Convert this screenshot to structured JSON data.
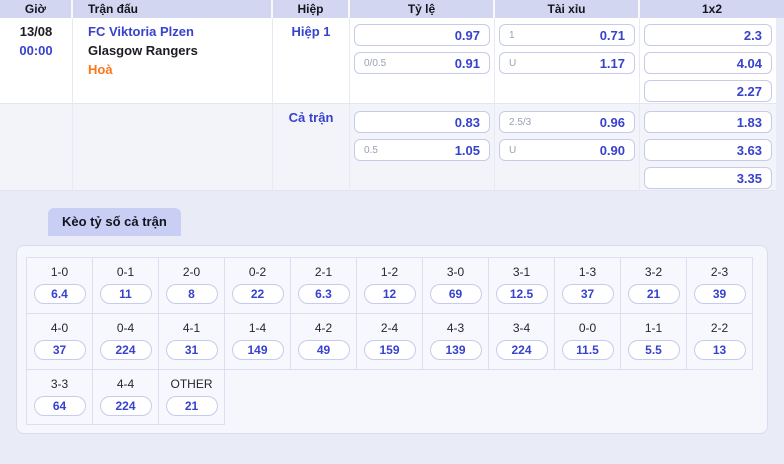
{
  "colors": {
    "accent_blue": "#3742cd",
    "orange": "#ff7519",
    "header_bg": "#d3d6f0",
    "tab_bg": "#c9cef4",
    "fulltime_row_bg": "#f3f4fa",
    "page_bg": "#e9ebf7"
  },
  "odds_table": {
    "headers": [
      "Giờ",
      "Trận đấu",
      "Hiệp",
      "Tỷ lệ",
      "Tài xỉu",
      "1x2"
    ],
    "match": {
      "date": "13/08",
      "time": "00:00",
      "home": "FC Viktoria Plzen",
      "away": "Glasgow Rangers",
      "draw": "Hoà"
    },
    "sections": [
      {
        "period": "Hiệp 1",
        "handicap": [
          {
            "line": "",
            "odds": "0.97"
          },
          {
            "line": "0/0.5",
            "odds": "0.91"
          }
        ],
        "over_under": [
          {
            "line": "1",
            "odds": "0.71"
          },
          {
            "line": "U",
            "odds": "1.17"
          }
        ],
        "one_x_two": [
          "2.3",
          "4.04",
          "2.27"
        ]
      },
      {
        "period": "Cả trận",
        "handicap": [
          {
            "line": "",
            "odds": "0.83"
          },
          {
            "line": "0.5",
            "odds": "1.05"
          }
        ],
        "over_under": [
          {
            "line": "2.5/3",
            "odds": "0.96"
          },
          {
            "line": "U",
            "odds": "0.90"
          }
        ],
        "one_x_two": [
          "1.83",
          "3.63",
          "3.35"
        ]
      }
    ]
  },
  "correct_score": {
    "tab_label": "Kèo tỷ số cả trận",
    "rows": [
      [
        {
          "score": "1-0",
          "odds": "6.4"
        },
        {
          "score": "0-1",
          "odds": "11"
        },
        {
          "score": "2-0",
          "odds": "8"
        },
        {
          "score": "0-2",
          "odds": "22"
        },
        {
          "score": "2-1",
          "odds": "6.3"
        },
        {
          "score": "1-2",
          "odds": "12"
        },
        {
          "score": "3-0",
          "odds": "69"
        },
        {
          "score": "3-1",
          "odds": "12.5"
        },
        {
          "score": "1-3",
          "odds": "37"
        },
        {
          "score": "3-2",
          "odds": "21"
        },
        {
          "score": "2-3",
          "odds": "39"
        }
      ],
      [
        {
          "score": "4-0",
          "odds": "37"
        },
        {
          "score": "0-4",
          "odds": "224"
        },
        {
          "score": "4-1",
          "odds": "31"
        },
        {
          "score": "1-4",
          "odds": "149"
        },
        {
          "score": "4-2",
          "odds": "49"
        },
        {
          "score": "2-4",
          "odds": "159"
        },
        {
          "score": "4-3",
          "odds": "139"
        },
        {
          "score": "3-4",
          "odds": "224"
        },
        {
          "score": "0-0",
          "odds": "11.5"
        },
        {
          "score": "1-1",
          "odds": "5.5"
        },
        {
          "score": "2-2",
          "odds": "13"
        }
      ],
      [
        {
          "score": "3-3",
          "odds": "64"
        },
        {
          "score": "4-4",
          "odds": "224"
        },
        {
          "score": "OTHER",
          "odds": "21"
        }
      ]
    ]
  }
}
